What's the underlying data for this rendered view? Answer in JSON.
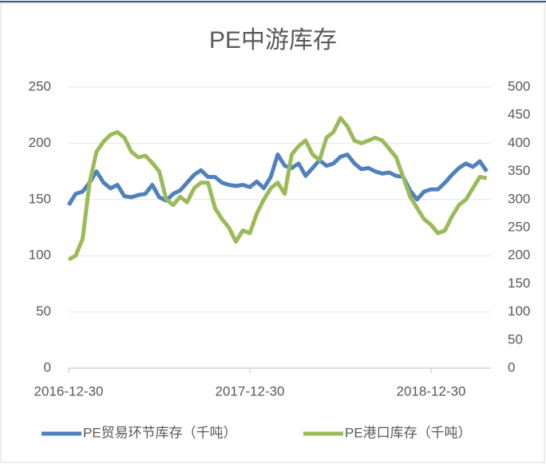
{
  "chart_data": {
    "type": "line",
    "title": "PE中游库存",
    "categories": [
      "2016-12-30",
      null,
      null,
      null,
      null,
      null,
      null,
      null,
      null,
      null,
      null,
      null,
      null,
      null,
      null,
      null,
      null,
      null,
      null,
      null,
      null,
      null,
      null,
      null,
      null,
      null,
      "2017-12-30",
      null,
      null,
      null,
      null,
      null,
      null,
      null,
      null,
      null,
      null,
      null,
      null,
      null,
      null,
      null,
      null,
      null,
      null,
      null,
      null,
      null,
      null,
      null,
      null,
      null,
      "2018-12-30",
      null,
      null,
      null,
      null,
      null,
      null,
      null,
      null
    ],
    "series": [
      {
        "name": "PE贸易环节库存（千吨）",
        "color": "#4f81bd",
        "axis": "y",
        "values": [
          145,
          155,
          157,
          165,
          175,
          165,
          160,
          163,
          153,
          152,
          154,
          155,
          163,
          152,
          149,
          155,
          158,
          165,
          172,
          176,
          170,
          170,
          165,
          163,
          162,
          163,
          161,
          166,
          160,
          170,
          190,
          180,
          178,
          182,
          171,
          178,
          185,
          180,
          182,
          188,
          190,
          182,
          177,
          178,
          175,
          173,
          174,
          171,
          170,
          158,
          150,
          157,
          159,
          159,
          165,
          172,
          178,
          182,
          179,
          184,
          175
        ]
      },
      {
        "name": "PE港口库存（千吨）",
        "color": "#9bbb59",
        "axis": "y2",
        "values": [
          193,
          200,
          230,
          330,
          385,
          403,
          415,
          420,
          410,
          385,
          375,
          378,
          365,
          350,
          300,
          290,
          305,
          295,
          320,
          330,
          330,
          285,
          265,
          250,
          225,
          245,
          240,
          275,
          300,
          320,
          330,
          310,
          380,
          395,
          405,
          380,
          370,
          410,
          420,
          445,
          430,
          405,
          400,
          405,
          410,
          405,
          390,
          375,
          340,
          305,
          285,
          265,
          255,
          240,
          245,
          270,
          290,
          300,
          320,
          340,
          338
        ]
      }
    ],
    "ylim": [
      0,
      250
    ],
    "yticks": [
      0,
      50,
      100,
      150,
      200,
      250
    ],
    "y2lim": [
      0,
      500
    ],
    "y2ticks": [
      0,
      50,
      100,
      150,
      200,
      250,
      300,
      350,
      400,
      450,
      500
    ]
  }
}
